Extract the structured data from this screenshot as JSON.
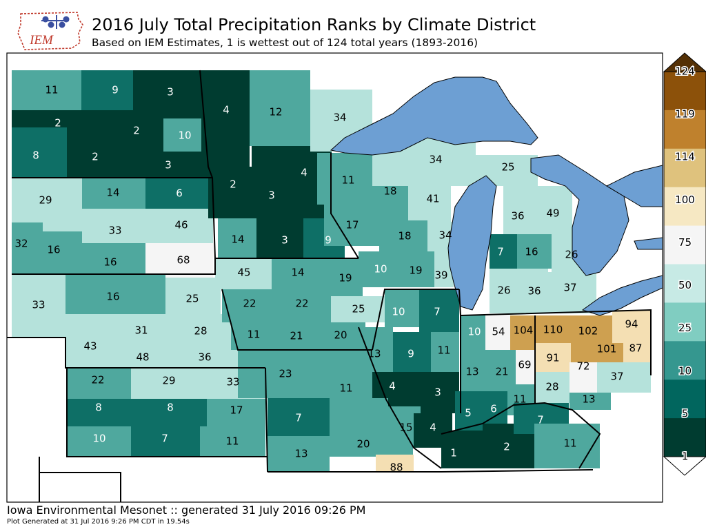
{
  "header": {
    "title": "2016 July Total Precipitation Ranks by Climate District",
    "subtitle": "Based on IEM Estimates, 1 is wettest out of 124 total years (1893-2016)",
    "logo_text": "IEM"
  },
  "footer": {
    "line1": "Iowa Environmental Mesonet :: generated 31 July 2016 09:26 PM",
    "line2": "Plot Generated at 31 Jul 2016 9:26 PM CDT in 19.54s"
  },
  "colorbar": {
    "labels": [
      "124",
      "119",
      "114",
      "100",
      "75",
      "50",
      "25",
      "10",
      "5",
      "1"
    ],
    "colors": [
      "#543005",
      "#8c510a",
      "#bf812d",
      "#dfc27d",
      "#f6e8c3",
      "#f5f5f5",
      "#c7eae5",
      "#80cdc1",
      "#35978f",
      "#01665e",
      "#003c30"
    ]
  },
  "colors": {
    "lake": "#6d9fd3",
    "rank_1_5": "#003c30",
    "rank_5_10": "#0e6f66",
    "rank_10_25": "#4fa89e",
    "rank_25_50": "#b5e2db",
    "rank_50_75": "#f5f5f5",
    "rank_75_100": "#f4dfb3",
    "rank_100_114": "#cea050"
  },
  "districts": [
    {
      "rank": "11"
    },
    {
      "rank": "9"
    },
    {
      "rank": "3"
    },
    {
      "rank": "4"
    },
    {
      "rank": "12"
    },
    {
      "rank": "34"
    },
    {
      "rank": "2"
    },
    {
      "rank": "2"
    },
    {
      "rank": "10"
    },
    {
      "rank": "8"
    },
    {
      "rank": "2"
    },
    {
      "rank": "3"
    },
    {
      "rank": "34"
    },
    {
      "rank": "25"
    },
    {
      "rank": "4"
    },
    {
      "rank": "29"
    },
    {
      "rank": "14"
    },
    {
      "rank": "6"
    },
    {
      "rank": "2"
    },
    {
      "rank": "3"
    },
    {
      "rank": "11"
    },
    {
      "rank": "18"
    },
    {
      "rank": "41"
    },
    {
      "rank": "36"
    },
    {
      "rank": "49"
    },
    {
      "rank": "33"
    },
    {
      "rank": "46"
    },
    {
      "rank": "17"
    },
    {
      "rank": "32"
    },
    {
      "rank": "16"
    },
    {
      "rank": "14"
    },
    {
      "rank": "3"
    },
    {
      "rank": "9"
    },
    {
      "rank": "18"
    },
    {
      "rank": "34"
    },
    {
      "rank": "7"
    },
    {
      "rank": "16"
    },
    {
      "rank": "16"
    },
    {
      "rank": "68"
    },
    {
      "rank": "26"
    },
    {
      "rank": "45"
    },
    {
      "rank": "14"
    },
    {
      "rank": "19"
    },
    {
      "rank": "10"
    },
    {
      "rank": "19"
    },
    {
      "rank": "39"
    },
    {
      "rank": "26"
    },
    {
      "rank": "36"
    },
    {
      "rank": "37"
    },
    {
      "rank": "16"
    },
    {
      "rank": "25"
    },
    {
      "rank": "33"
    },
    {
      "rank": "22"
    },
    {
      "rank": "22"
    },
    {
      "rank": "25"
    },
    {
      "rank": "10"
    },
    {
      "rank": "7"
    },
    {
      "rank": "10"
    },
    {
      "rank": "54"
    },
    {
      "rank": "104"
    },
    {
      "rank": "110"
    },
    {
      "rank": "102"
    },
    {
      "rank": "94"
    },
    {
      "rank": "31"
    },
    {
      "rank": "28"
    },
    {
      "rank": "11"
    },
    {
      "rank": "21"
    },
    {
      "rank": "20"
    },
    {
      "rank": "43"
    },
    {
      "rank": "48"
    },
    {
      "rank": "36"
    },
    {
      "rank": "13"
    },
    {
      "rank": "9"
    },
    {
      "rank": "11"
    },
    {
      "rank": "101"
    },
    {
      "rank": "87"
    },
    {
      "rank": "91"
    },
    {
      "rank": "69"
    },
    {
      "rank": "22"
    },
    {
      "rank": "29"
    },
    {
      "rank": "33"
    },
    {
      "rank": "23"
    },
    {
      "rank": "72"
    },
    {
      "rank": "13"
    },
    {
      "rank": "21"
    },
    {
      "rank": "37"
    },
    {
      "rank": "4"
    },
    {
      "rank": "3"
    },
    {
      "rank": "11"
    },
    {
      "rank": "28"
    },
    {
      "rank": "8"
    },
    {
      "rank": "8"
    },
    {
      "rank": "17"
    },
    {
      "rank": "11"
    },
    {
      "rank": "13"
    },
    {
      "rank": "7"
    },
    {
      "rank": "5"
    },
    {
      "rank": "6"
    },
    {
      "rank": "7"
    },
    {
      "rank": "10"
    },
    {
      "rank": "7"
    },
    {
      "rank": "11"
    },
    {
      "rank": "15"
    },
    {
      "rank": "4"
    },
    {
      "rank": "20"
    },
    {
      "rank": "11"
    },
    {
      "rank": "1"
    },
    {
      "rank": "2"
    },
    {
      "rank": "13"
    },
    {
      "rank": "88"
    }
  ]
}
